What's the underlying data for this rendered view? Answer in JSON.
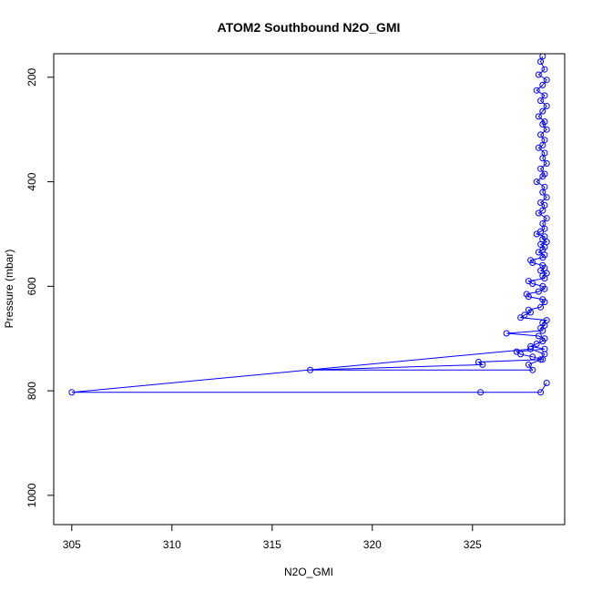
{
  "chart_data": {
    "type": "line",
    "title": "ATOM2 Southbound N2O_GMI",
    "xlabel": "N2O_GMI",
    "ylabel": "Pressure (mbar)",
    "xlim": [
      304.1,
      329.6
    ],
    "ylim": [
      1056,
      155
    ],
    "y_reversed": true,
    "x_ticks": [
      305,
      310,
      315,
      320,
      325
    ],
    "y_ticks": [
      200,
      400,
      600,
      800,
      1000
    ],
    "grid": false,
    "legend": "none",
    "color": "#0000ff",
    "marker": "open-circle",
    "series": [
      {
        "x": [
          328.5,
          328.4,
          328.6,
          328.3,
          328.7,
          328.5,
          328.2,
          328.6,
          328.4,
          328.7,
          328.5,
          328.3,
          328.6,
          328.5,
          328.7,
          328.4,
          328.6,
          328.5,
          328.3,
          328.6,
          328.5,
          328.7,
          328.4,
          328.6,
          328.5,
          328.2,
          328.6,
          328.5,
          328.7,
          328.4,
          328.6,
          328.5,
          328.3,
          328.7,
          328.5,
          328.6,
          328.4,
          328.2,
          328.6,
          328.5,
          328.7,
          328.4,
          328.6,
          328.5,
          328.3,
          328.6,
          328.5,
          327.9,
          328.0,
          328.5,
          328.6,
          328.4,
          328.7,
          328.5,
          328.6,
          327.8,
          328.0,
          328.5,
          328.6,
          328.3,
          327.7,
          327.8,
          328.5,
          328.6,
          328.4,
          327.8,
          327.9,
          327.6,
          327.4,
          328.7,
          328.5,
          328.6,
          328.4,
          328.5,
          326.7,
          328.3,
          328.6,
          328.5,
          328.2,
          327.9,
          328.6,
          327.2,
          327.4,
          328.0,
          328.5,
          325.3,
          325.5,
          316.9,
          328.0,
          327.8,
          328.4,
          328.6,
          327.9,
          305.0,
          325.4,
          328.4,
          328.7
        ],
        "y": [
          160,
          170,
          185,
          195,
          205,
          215,
          225,
          235,
          245,
          255,
          265,
          275,
          285,
          290,
          300,
          310,
          320,
          330,
          335,
          345,
          355,
          365,
          375,
          385,
          390,
          400,
          410,
          420,
          430,
          440,
          445,
          455,
          460,
          470,
          480,
          490,
          495,
          500,
          505,
          510,
          515,
          520,
          525,
          530,
          535,
          540,
          545,
          550,
          555,
          560,
          565,
          570,
          575,
          580,
          585,
          590,
          595,
          600,
          605,
          610,
          615,
          620,
          625,
          630,
          640,
          645,
          650,
          655,
          660,
          665,
          670,
          675,
          680,
          685,
          690,
          695,
          700,
          705,
          710,
          715,
          720,
          725,
          730,
          735,
          740,
          745,
          750,
          760,
          760,
          750,
          740,
          730,
          720,
          803,
          803,
          803,
          785
        ]
      }
    ]
  }
}
